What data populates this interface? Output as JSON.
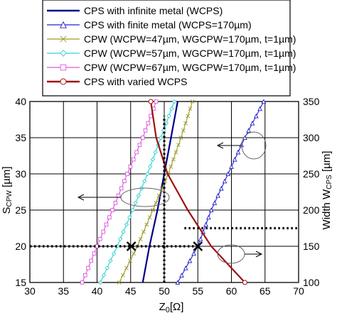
{
  "chart_data": {
    "type": "line",
    "title": "",
    "xlabel": "Z0[Ω]",
    "ylabel_left": "SCPW [µm]",
    "ylabel_right": "Width WCPS [µm]",
    "xlim": [
      30,
      70
    ],
    "ylim_left": [
      15,
      40
    ],
    "ylim_right": [
      100,
      350
    ],
    "x_ticks": [
      "30",
      "35",
      "40",
      "45",
      "50",
      "55",
      "60",
      "65",
      "70"
    ],
    "y_left_ticks": [
      "15",
      "20",
      "25",
      "30",
      "35",
      "40"
    ],
    "y_right_ticks": [
      "100",
      "150",
      "200",
      "250",
      "300",
      "350"
    ],
    "grid": true,
    "legend_position": "top",
    "series": [
      {
        "name": "CPS with infinite metal (WCPS)",
        "axis": "right",
        "color": "#00008b",
        "marker": "none",
        "points": [
          [
            52.0,
            350
          ],
          [
            51.0,
            300
          ],
          [
            50.0,
            250
          ],
          [
            49.0,
            200
          ],
          [
            47.8,
            150
          ],
          [
            46.8,
            100
          ]
        ]
      },
      {
        "name": "CPS with finite metal (WCPS=170µm)",
        "axis": "right",
        "color": "#2020d0",
        "marker": "triangle",
        "points": [
          [
            64.8,
            350
          ],
          [
            62.0,
            300
          ],
          [
            59.5,
            250
          ],
          [
            57.0,
            200
          ],
          [
            55.0,
            150
          ],
          [
            52.0,
            100
          ]
        ]
      },
      {
        "name": "CPW (WCPW=47µm, WGCPW=170µm, t=1µm)",
        "axis": "left",
        "color": "#9b9b2a",
        "marker": "x",
        "points": [
          [
            54.2,
            40
          ],
          [
            52.5,
            35
          ],
          [
            50.6,
            30
          ],
          [
            48.3,
            25
          ],
          [
            46.0,
            20
          ],
          [
            43.3,
            15
          ]
        ]
      },
      {
        "name": "CPW (WCPW=57µm, WGCPW=170µm, t=1µm)",
        "axis": "left",
        "color": "#33d1d1",
        "marker": "diamond",
        "points": [
          [
            51.5,
            40
          ],
          [
            49.5,
            35
          ],
          [
            47.5,
            30
          ],
          [
            45.3,
            25
          ],
          [
            43.0,
            20
          ],
          [
            40.5,
            15
          ]
        ]
      },
      {
        "name": "CPW (WCPW=67µm, WGCPW=170µm, t=1µm)",
        "axis": "left",
        "color": "#dd55dd",
        "marker": "square",
        "points": [
          [
            48.8,
            40
          ],
          [
            46.8,
            35
          ],
          [
            44.5,
            30
          ],
          [
            42.3,
            25
          ],
          [
            40.0,
            20
          ],
          [
            37.8,
            15
          ]
        ]
      },
      {
        "name": "CPS with varied WCPS",
        "axis": "right",
        "color": "#a01010",
        "marker": "circle",
        "points": [
          [
            48.0,
            350
          ],
          [
            48.8,
            300
          ],
          [
            50.5,
            250
          ],
          [
            53.5,
            200
          ],
          [
            57.0,
            150
          ],
          [
            62.0,
            100
          ]
        ]
      }
    ],
    "annotations": [
      {
        "type": "dotted-line",
        "axis": "left",
        "from": [
          30,
          20
        ],
        "to": [
          55,
          20
        ]
      },
      {
        "type": "dotted-line",
        "axis": "left",
        "from": [
          50,
          15
        ],
        "to": [
          50,
          38
        ]
      },
      {
        "type": "dotted-line",
        "axis": "right",
        "from": [
          53,
          175
        ],
        "to": [
          70,
          175
        ]
      },
      {
        "type": "cross-marker",
        "axis": "left",
        "at": [
          45.1,
          20
        ]
      },
      {
        "type": "cross-marker",
        "axis": "left",
        "at": [
          55.0,
          20
        ]
      }
    ]
  }
}
